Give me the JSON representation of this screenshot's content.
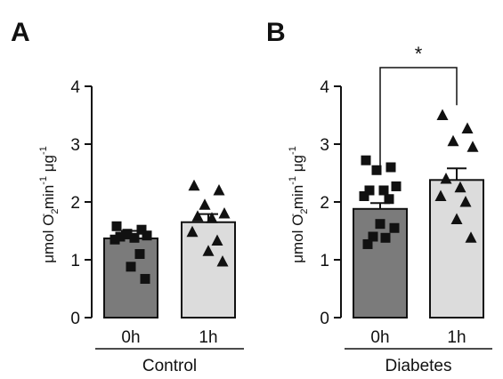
{
  "chart_data": [
    {
      "type": "bar",
      "panel": "A",
      "group_label": "Control",
      "categories": [
        "0h",
        "1h"
      ],
      "ylabel": "μmol O₂⁻ min⁻¹ μg⁻¹",
      "ylabel_parts": [
        "μmol O",
        "2",
        "-",
        " min",
        "-1",
        " μg",
        "-1"
      ],
      "yticks": [
        "0",
        "1",
        "2",
        "3",
        "4"
      ],
      "ylim": [
        0,
        4
      ],
      "series": [
        {
          "values": [
            1.37,
            1.65
          ],
          "errors": [
            0.13,
            0.14
          ],
          "colors": [
            "#7b7b7b",
            "#dcdcdc"
          ],
          "points": [
            {
              "marker": "square",
              "values": [
                1.58,
                1.52,
                1.45,
                1.42,
                1.4,
                1.38,
                1.35,
                1.1,
                0.88,
                0.67
              ]
            },
            {
              "marker": "triangle",
              "values": [
                2.28,
                2.2,
                1.95,
                1.8,
                1.75,
                1.72,
                1.48,
                1.33,
                1.15,
                0.97
              ]
            }
          ]
        }
      ],
      "grid": false
    },
    {
      "type": "bar",
      "panel": "B",
      "group_label": "Diabetes",
      "categories": [
        "0h",
        "1h"
      ],
      "ylabel": "μmol O₂⁻ min⁻¹ μg⁻¹",
      "ylabel_parts": [
        "μmol O",
        "2",
        "-",
        " min",
        "-1",
        " μg",
        "-1"
      ],
      "yticks": [
        "0",
        "1",
        "2",
        "3",
        "4"
      ],
      "ylim": [
        0,
        4
      ],
      "significance": "*",
      "series": [
        {
          "values": [
            1.88,
            2.38
          ],
          "errors": [
            0.1,
            0.2
          ],
          "colors": [
            "#7b7b7b",
            "#dcdcdc"
          ],
          "points": [
            {
              "marker": "square",
              "values": [
                2.72,
                2.6,
                2.55,
                2.27,
                2.2,
                2.2,
                2.1,
                2.05,
                1.62,
                1.55,
                1.4,
                1.38,
                1.27
              ]
            },
            {
              "marker": "triangle",
              "values": [
                3.5,
                3.27,
                3.05,
                2.95,
                2.4,
                2.25,
                2.1,
                2.0,
                1.7,
                1.38
              ]
            }
          ]
        }
      ],
      "grid": false
    }
  ]
}
